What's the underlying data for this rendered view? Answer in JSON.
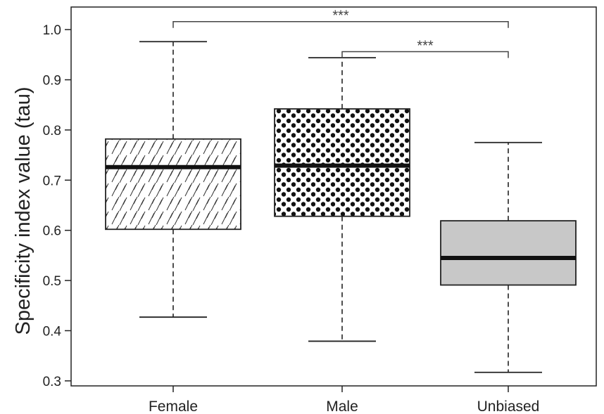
{
  "chart_data": {
    "type": "boxplot",
    "title": "",
    "xlabel": "",
    "ylabel": "Specificity index value (tau)",
    "ylim": [
      0.29,
      1.045
    ],
    "yticks": [
      0.3,
      0.4,
      0.5,
      0.6,
      0.7,
      0.8,
      0.9,
      1.0
    ],
    "ytick_labels": [
      "0.3",
      "0.4",
      "0.5",
      "0.6",
      "0.7",
      "0.8",
      "0.9",
      "1.0"
    ],
    "categories": [
      "Female",
      "Male",
      "Unbiased"
    ],
    "boxes": [
      {
        "category": "Female",
        "whisker_low": 0.427,
        "q1": 0.602,
        "median": 0.726,
        "q3": 0.782,
        "whisker_high": 0.976,
        "fill": "hatch"
      },
      {
        "category": "Male",
        "whisker_low": 0.379,
        "q1": 0.628,
        "median": 0.729,
        "q3": 0.842,
        "whisker_high": 0.944,
        "fill": "dots"
      },
      {
        "category": "Unbiased",
        "whisker_low": 0.317,
        "q1": 0.491,
        "median": 0.545,
        "q3": 0.619,
        "whisker_high": 0.775,
        "fill": "#c8c8c8"
      }
    ],
    "significance": [
      {
        "from": "Female",
        "to": "Unbiased",
        "y": 1.016,
        "label": "***"
      },
      {
        "from": "Male",
        "to": "Unbiased",
        "y": 0.956,
        "label": "***"
      }
    ],
    "grid": false,
    "legend": "none"
  }
}
